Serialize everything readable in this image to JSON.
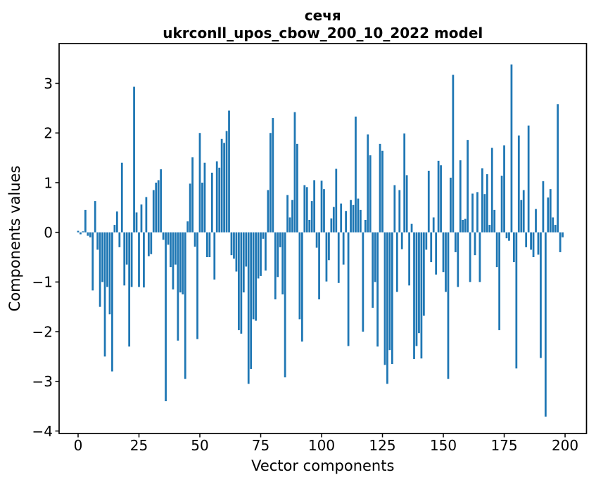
{
  "chart_data": {
    "type": "bar",
    "title": "сечя",
    "subtitle": "ukrconll_upos_cbow_200_10_2022 model",
    "xlabel": "Vector components",
    "ylabel": "Components values",
    "bar_color": "#1f77b4",
    "axis_color": "#000000",
    "background_color": "#ffffff",
    "grid": "off",
    "legend": "none",
    "x_ticks": [
      0,
      25,
      50,
      75,
      100,
      125,
      150,
      175,
      200
    ],
    "y_tick_labels": [
      "3",
      "2",
      "1",
      "0",
      "−1",
      "−2",
      "−3",
      "−4"
    ],
    "y_tick_values": [
      3,
      2,
      1,
      0,
      -1,
      -2,
      -3,
      -4
    ],
    "xlim": [
      -7.8,
      208.8
    ],
    "ylim": [
      -4.05,
      3.8
    ],
    "n_components": 200,
    "values": [
      0.03,
      -0.04,
      0.02,
      0.45,
      -0.07,
      -0.1,
      -1.17,
      0.63,
      -0.35,
      -1.5,
      -1.0,
      -2.5,
      -1.1,
      -1.65,
      -2.8,
      0.15,
      0.42,
      -0.3,
      1.4,
      -1.07,
      -0.65,
      -2.3,
      -1.1,
      2.93,
      0.4,
      -1.1,
      0.56,
      -1.11,
      0.71,
      -0.48,
      -0.44,
      0.85,
      1.0,
      1.05,
      1.27,
      -0.15,
      -3.4,
      -0.25,
      -0.7,
      -1.15,
      -0.65,
      -2.18,
      -1.21,
      -1.25,
      -2.95,
      0.22,
      0.98,
      1.51,
      -0.29,
      -2.15,
      2.0,
      1.0,
      1.4,
      -0.5,
      -0.5,
      1.2,
      -0.95,
      1.43,
      1.3,
      1.88,
      1.8,
      2.04,
      2.45,
      -0.46,
      -0.53,
      -0.79,
      -1.97,
      -2.04,
      -1.21,
      -0.69,
      -3.05,
      -2.75,
      -1.75,
      -1.78,
      -0.93,
      -0.88,
      -0.13,
      -0.77,
      0.85,
      2.0,
      2.3,
      -1.35,
      -0.9,
      -0.3,
      -1.25,
      -2.92,
      0.75,
      0.3,
      0.65,
      2.42,
      1.78,
      -1.75,
      -2.2,
      0.95,
      0.91,
      0.25,
      0.63,
      1.05,
      -0.31,
      -1.35,
      1.04,
      0.87,
      -0.99,
      -0.56,
      0.28,
      0.51,
      1.28,
      -1.02,
      0.58,
      -0.65,
      0.43,
      -2.29,
      0.65,
      0.55,
      2.33,
      0.68,
      0.45,
      -2.0,
      0.25,
      1.97,
      1.55,
      -1.52,
      -1.0,
      -2.3,
      1.78,
      1.64,
      -2.67,
      -3.05,
      -2.37,
      -2.65,
      0.95,
      -1.2,
      0.85,
      -0.34,
      1.99,
      1.15,
      -1.07,
      0.17,
      -2.55,
      -2.29,
      -2.03,
      -2.54,
      -1.68,
      -0.35,
      1.24,
      -0.6,
      0.3,
      -0.85,
      1.44,
      1.35,
      -0.8,
      -1.2,
      -2.95,
      1.1,
      3.17,
      -0.4,
      -1.1,
      1.45,
      0.25,
      0.27,
      1.86,
      -1.0,
      0.78,
      -0.46,
      0.81,
      -1.0,
      1.29,
      0.77,
      1.17,
      0.15,
      1.7,
      0.45,
      -0.7,
      -1.97,
      1.14,
      1.75,
      -0.12,
      -0.17,
      3.38,
      -0.6,
      -2.74,
      1.95,
      0.65,
      0.85,
      -0.3,
      2.15,
      -0.35,
      -0.5,
      0.47,
      -0.45,
      -2.53,
      1.03,
      -3.71,
      0.7,
      0.87,
      0.3,
      0.15,
      2.58,
      -0.4,
      -0.1
    ]
  }
}
